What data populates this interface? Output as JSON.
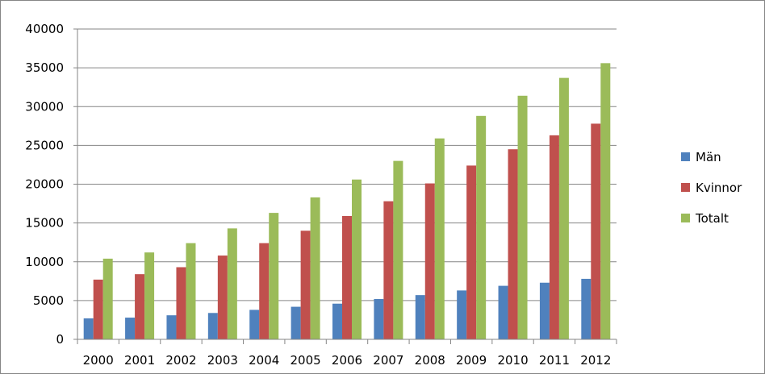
{
  "chart_data": {
    "type": "bar",
    "title": "",
    "xlabel": "",
    "ylabel": "",
    "categories": [
      "2000",
      "2001",
      "2002",
      "2003",
      "2004",
      "2005",
      "2006",
      "2007",
      "2008",
      "2009",
      "2010",
      "2011",
      "2012"
    ],
    "series": [
      {
        "name": "Män",
        "color": "#4f81bd",
        "values": [
          2700,
          2800,
          3100,
          3400,
          3800,
          4200,
          4600,
          5200,
          5700,
          6300,
          6900,
          7300,
          7800
        ]
      },
      {
        "name": "Kvinnor",
        "color": "#c0504d",
        "values": [
          7700,
          8400,
          9300,
          10800,
          12400,
          14000,
          15900,
          17800,
          20100,
          22400,
          24500,
          26300,
          27800
        ]
      },
      {
        "name": "Totalt",
        "color": "#9bbb59",
        "values": [
          10400,
          11200,
          12400,
          14300,
          16300,
          18300,
          20600,
          23000,
          25900,
          28800,
          31400,
          33700,
          35600
        ]
      }
    ],
    "ylim": [
      0,
      40000
    ],
    "yticks": [
      0,
      5000,
      10000,
      15000,
      20000,
      25000,
      30000,
      35000,
      40000
    ],
    "grid": true,
    "legend_position": "right"
  }
}
